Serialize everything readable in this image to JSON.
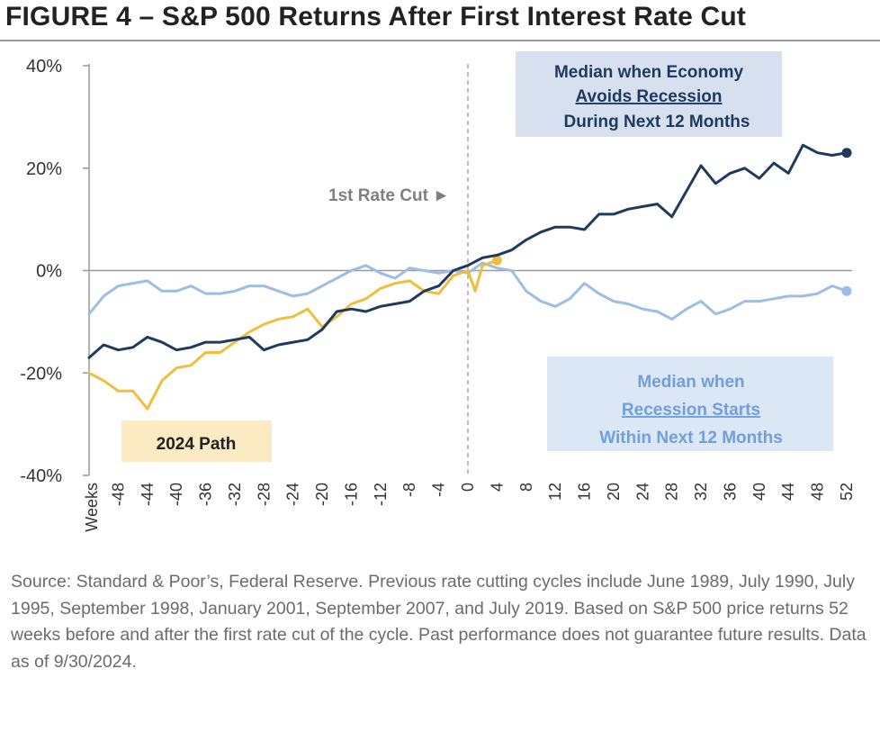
{
  "title": "FIGURE 4 – S&P 500 Returns After First Interest Rate Cut",
  "footnote": "Source: Standard & Poor’s, Federal Reserve. Previous rate cutting cycles include June 1989, July 1990, July 1995, September 1998, January 2001, September 2007, and July 2019. Based on S&P 500 price returns 52 weeks before and after the first rate cut of the cycle. Past performance does not guarantee future results. Data as of 9/30/2024.",
  "colors": {
    "no_recession": "#1f3a5f",
    "recession": "#9dbde6",
    "path_2024": "#f0be3c",
    "box_no_recession": "#d6e0ee",
    "box_recession": "#dbe7f5",
    "box_2024": "#fbeac2",
    "cut_line": "#aaaaaa"
  },
  "chart_data": {
    "type": "line",
    "x_axis_label": "Weeks",
    "x_ticks": [
      -48,
      -44,
      -40,
      -36,
      -32,
      -28,
      -24,
      -20,
      -16,
      -12,
      -8,
      -4,
      0,
      4,
      8,
      12,
      16,
      20,
      24,
      28,
      32,
      36,
      40,
      44,
      48,
      52
    ],
    "xlim": [
      -52,
      52
    ],
    "y_ticks": [
      "40%",
      "20%",
      "0%",
      "-20%",
      "-40%"
    ],
    "y_tick_values": [
      40,
      20,
      0,
      -20,
      -40
    ],
    "ylim": [
      -40,
      40
    ],
    "cut_label": "1st Rate Cut ►",
    "annotations": {
      "no_recession": [
        "Median when Economy",
        "Avoids Recession",
        "During Next 12 Months"
      ],
      "recession": [
        "Median when",
        "Recession Starts",
        "Within Next 12 Months"
      ],
      "path_2024": "2024 Path"
    },
    "series": [
      {
        "key": "no_recession",
        "x": [
          -52,
          -50,
          -48,
          -46,
          -44,
          -42,
          -40,
          -38,
          -36,
          -34,
          -32,
          -30,
          -28,
          -26,
          -24,
          -22,
          -20,
          -18,
          -16,
          -14,
          -12,
          -10,
          -8,
          -6,
          -4,
          -2,
          0,
          2,
          4,
          6,
          8,
          10,
          12,
          14,
          16,
          18,
          20,
          22,
          24,
          26,
          28,
          30,
          32,
          34,
          36,
          38,
          40,
          42,
          44,
          46,
          48,
          50,
          52
        ],
        "y": [
          -17,
          -14.5,
          -15.5,
          -15,
          -13,
          -14,
          -15.5,
          -15,
          -14,
          -14,
          -13.5,
          -13,
          -15.5,
          -14.5,
          -14,
          -13.5,
          -11.5,
          -8,
          -7.5,
          -8,
          -7,
          -6.5,
          -6,
          -4,
          -3,
          0,
          1,
          2.5,
          3,
          4,
          6,
          7.5,
          8.5,
          8.5,
          8,
          11,
          11,
          12,
          12.5,
          13,
          10.5,
          15.5,
          20.5,
          17,
          19,
          20,
          18,
          21,
          19,
          24.5,
          23,
          22.5,
          23
        ]
      },
      {
        "key": "recession",
        "x": [
          -52,
          -50,
          -48,
          -46,
          -44,
          -42,
          -40,
          -38,
          -36,
          -34,
          -32,
          -30,
          -28,
          -26,
          -24,
          -22,
          -20,
          -18,
          -16,
          -14,
          -12,
          -10,
          -8,
          -6,
          -4,
          -2,
          0,
          2,
          4,
          6,
          8,
          10,
          12,
          14,
          16,
          18,
          20,
          22,
          24,
          26,
          28,
          30,
          32,
          34,
          36,
          38,
          40,
          42,
          44,
          46,
          48,
          50,
          52
        ],
        "y": [
          -8.5,
          -5,
          -3,
          -2.5,
          -2,
          -4,
          -4,
          -3,
          -4.5,
          -4.5,
          -4,
          -3,
          -3,
          -4,
          -5,
          -4.5,
          -3,
          -1.5,
          0,
          1,
          -0.5,
          -1.5,
          0.5,
          0,
          -0.5,
          0,
          -0.5,
          1.5,
          0.5,
          0,
          -4,
          -6,
          -7,
          -5.5,
          -2.5,
          -4.5,
          -6,
          -6.5,
          -7.5,
          -8,
          -9.5,
          -7.5,
          -6,
          -8.5,
          -7.5,
          -6,
          -6,
          -5.5,
          -5,
          -5,
          -4.5,
          -3,
          -4
        ]
      },
      {
        "key": "path_2024",
        "x": [
          -52,
          -50,
          -48,
          -46,
          -44,
          -42,
          -40,
          -38,
          -36,
          -34,
          -32,
          -30,
          -28,
          -26,
          -24,
          -22,
          -20,
          -18,
          -16,
          -14,
          -12,
          -10,
          -8,
          -6,
          -4,
          -2,
          0,
          1,
          2,
          3,
          4
        ],
        "y": [
          -20,
          -21.5,
          -23.5,
          -23.5,
          -27,
          -21.5,
          -19,
          -18.5,
          -16,
          -16,
          -14,
          -12,
          -10.5,
          -9.5,
          -9,
          -7.5,
          -11,
          -9,
          -6.5,
          -5.5,
          -3.5,
          -2.5,
          -2,
          -4,
          -4.5,
          -1,
          0,
          -4,
          1,
          1.5,
          2
        ]
      }
    ]
  }
}
